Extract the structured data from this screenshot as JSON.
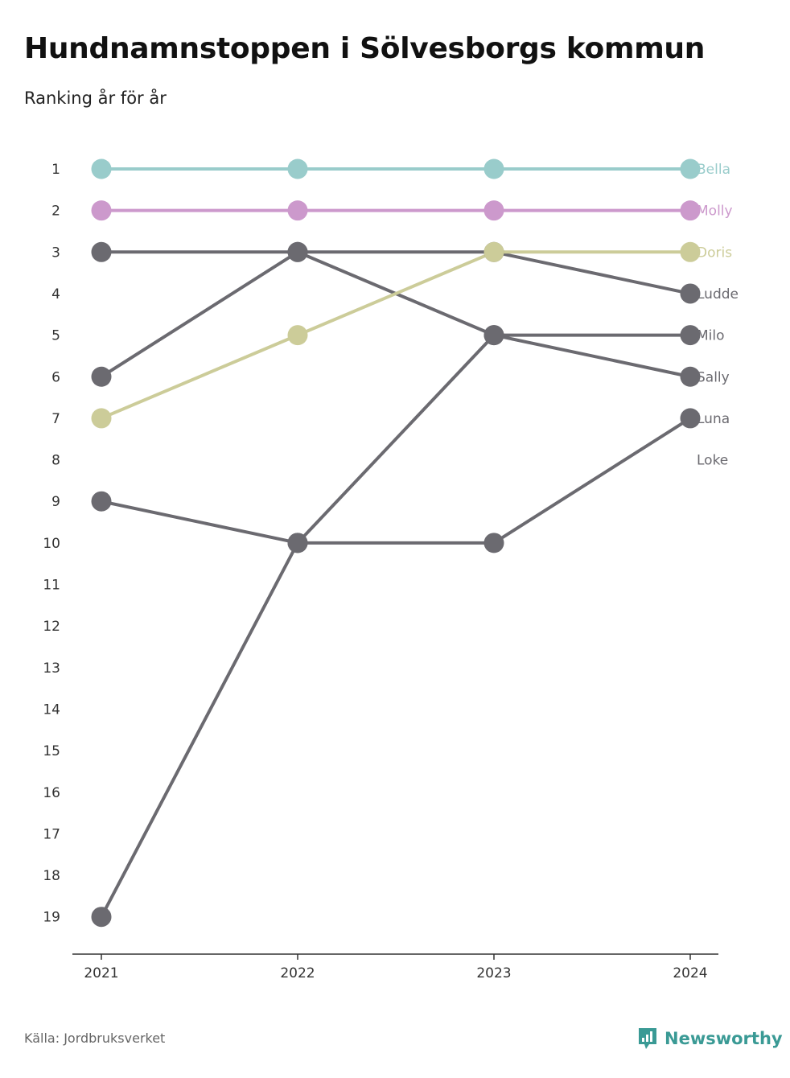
{
  "header": {
    "title": "Hundnamnstoppen i Sölvesborgs kommun",
    "subtitle": "Ranking år för år"
  },
  "footer": {
    "source": "Källa: Jordbruksverket",
    "brand": "Newsworthy",
    "brand_icon": "newsworthy-logo-icon",
    "brand_color": "#3a9a95"
  },
  "chart_data": {
    "type": "line",
    "title": "Hundnamnstoppen i Sölvesborgs kommun",
    "subtitle": "Ranking år för år",
    "x": [
      "2021",
      "2022",
      "2023",
      "2024"
    ],
    "y_ticks": [
      1,
      2,
      3,
      4,
      5,
      6,
      7,
      8,
      9,
      10,
      11,
      12,
      13,
      14,
      15,
      16,
      17,
      18,
      19
    ],
    "ylim": [
      1,
      19
    ],
    "y_reversed": true,
    "grid": false,
    "series": [
      {
        "name": "Bella",
        "values": [
          1,
          1,
          1,
          1
        ],
        "color": "#99cccb"
      },
      {
        "name": "Molly",
        "values": [
          2,
          2,
          2,
          2
        ],
        "color": "#cc99cc"
      },
      {
        "name": "Doris",
        "values": [
          7,
          5,
          3,
          3
        ],
        "color": "#cccc99"
      },
      {
        "name": "Ludde",
        "values": [
          3,
          3,
          3,
          4
        ],
        "color": "#6b6a70"
      },
      {
        "name": "Milo",
        "values": [
          19,
          10,
          5,
          5
        ],
        "color": "#6b6a70"
      },
      {
        "name": "Sally",
        "values": [
          6,
          3,
          5,
          6
        ],
        "color": "#6b6a70"
      },
      {
        "name": "Luna",
        "values": [
          9,
          10,
          10,
          7
        ],
        "color": "#6b6a70"
      },
      {
        "name": "Loke",
        "values": [
          null,
          null,
          null,
          null
        ],
        "color": "#6b6a70"
      }
    ],
    "end_labels": [
      {
        "name": "Bella",
        "rank": 1
      },
      {
        "name": "Molly",
        "rank": 2
      },
      {
        "name": "Doris",
        "rank": 3
      },
      {
        "name": "Ludde",
        "rank": 4
      },
      {
        "name": "Milo",
        "rank": 5
      },
      {
        "name": "Sally",
        "rank": 6
      },
      {
        "name": "Luna",
        "rank": 7
      },
      {
        "name": "Loke",
        "rank": 8
      }
    ],
    "legend": "end-of-line labels"
  }
}
